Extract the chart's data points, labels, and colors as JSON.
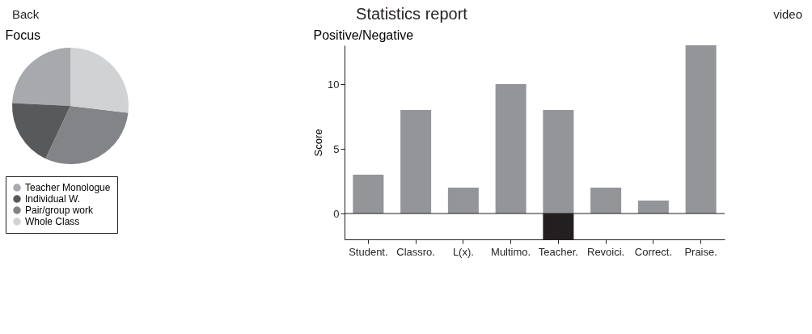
{
  "chart_data": [
    {
      "type": "pie",
      "title": "Focus",
      "annotations": [
        "Back",
        "Statistics report",
        "video"
      ],
      "categories": [
        "Teacher Monologue",
        "Individual W.",
        "Pair/group work",
        "Whole Class"
      ],
      "values": [
        24.2,
        18.8,
        30.1,
        26.9
      ],
      "colors": [
        "#a7a9ac",
        "#58595b",
        "#838487",
        "#d1d2d4"
      ],
      "legend": "bottom"
    },
    {
      "type": "bar",
      "title": "Positive/Negative",
      "ylabel": "Score",
      "categories": [
        "Student.",
        "Classro.",
        "L(x).",
        "Multimo.",
        "Teacher.",
        "Revoici.",
        "Correct.",
        "Praise."
      ],
      "stacked": true,
      "series": [
        {
          "color": "#939598",
          "values": [
            3,
            8,
            2,
            10,
            8,
            2,
            1,
            13
          ]
        },
        {
          "color": "#231f20",
          "values": [
            null,
            null,
            null,
            null,
            -2,
            null,
            null,
            null
          ]
        }
      ],
      "ylim": [
        -2,
        13
      ],
      "yticks": [
        0,
        5,
        10
      ],
      "grid": false,
      "ref_lines": [
        {
          "axis": "y",
          "value": 0,
          "color": "#231f20"
        }
      ]
    }
  ]
}
